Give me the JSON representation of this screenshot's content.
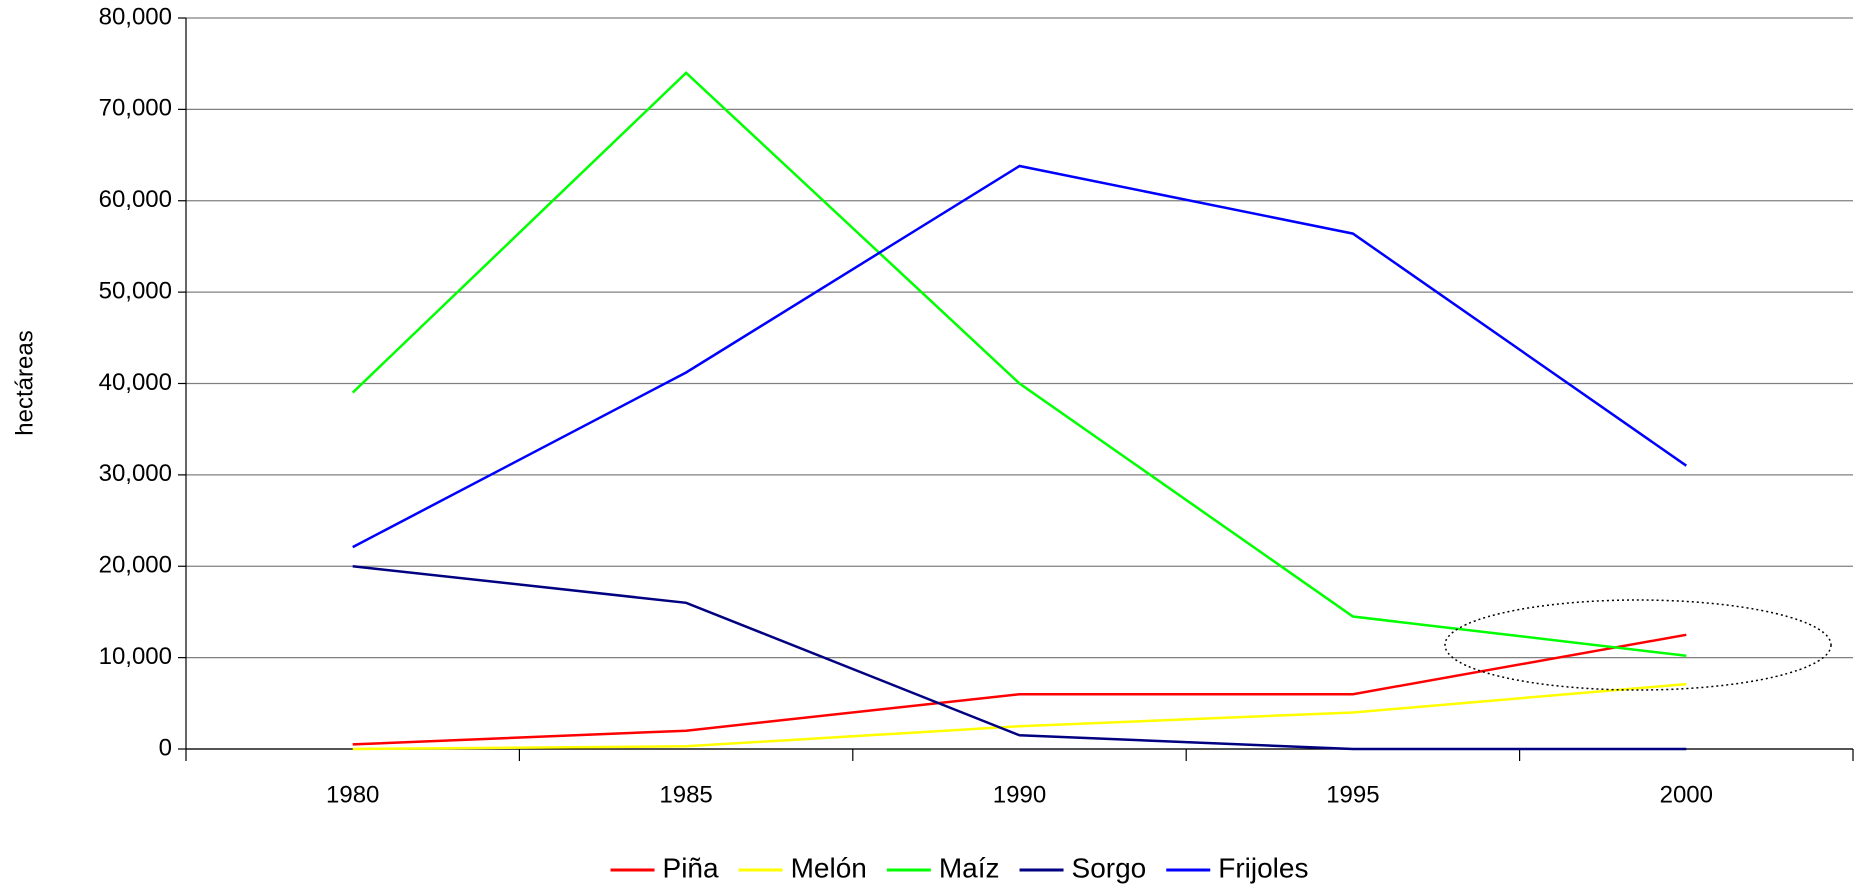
{
  "chart_data": {
    "type": "line",
    "y_label": "hectáreas",
    "categories": [
      "1980",
      "1985",
      "1990",
      "1995",
      "2000"
    ],
    "series": [
      {
        "name": "Piña",
        "color": "#ff0000",
        "values": [
          500,
          2000,
          6000,
          6000,
          12500
        ]
      },
      {
        "name": "Melón",
        "color": "#ffff00",
        "values": [
          0,
          300,
          2500,
          4000,
          7100
        ]
      },
      {
        "name": "Maíz",
        "color": "#00ff00",
        "values": [
          39000,
          74000,
          40000,
          14500,
          10200
        ]
      },
      {
        "name": "Sorgo",
        "color": "#000080",
        "values": [
          20000,
          16000,
          1500,
          0,
          0
        ]
      },
      {
        "name": "Frijoles",
        "color": "#0000ff",
        "values": [
          22100,
          41200,
          63800,
          56400,
          31000
        ]
      }
    ],
    "ylim": [
      0,
      80000
    ],
    "yticks": [
      {
        "value": 0,
        "label": "0"
      },
      {
        "value": 10000,
        "label": "10,000"
      },
      {
        "value": 20000,
        "label": "20,000"
      },
      {
        "value": 30000,
        "label": "30,000"
      },
      {
        "value": 40000,
        "label": "40,000"
      },
      {
        "value": 50000,
        "label": "50,000"
      },
      {
        "value": 60000,
        "label": "60,000"
      },
      {
        "value": 70000,
        "label": "70,000"
      },
      {
        "value": 80000,
        "label": "80,000"
      }
    ],
    "grid": true,
    "legend": "bottom"
  }
}
